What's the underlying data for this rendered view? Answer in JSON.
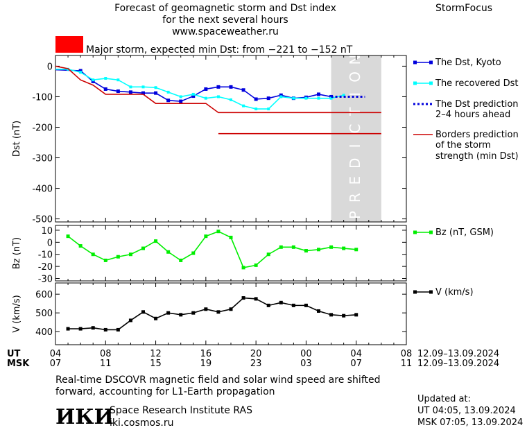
{
  "header": {
    "title_line1": "Forecast of geomagnetic storm and Dst index",
    "title_line2": "for the next several hours",
    "title_line3": "www.spaceweather.ru",
    "brand": "StormFocus"
  },
  "storm_banner": {
    "color": "#ff0000",
    "text": "Major storm, expected min Dst: from −221 to −152 nT"
  },
  "legend": {
    "dst_kyoto": "The Dst, Kyoto",
    "dst_recovered": "The recovered Dst",
    "dst_prediction_1": "The Dst prediction",
    "dst_prediction_2": "2–4 hours ahead",
    "borders_1": "Borders prediction",
    "borders_2": "of the storm",
    "borders_3": "strength (min Dst)",
    "bz": "Bz (nT, GSM)",
    "v": "V (km/s)"
  },
  "prediction_label": "PREDICTION",
  "time_axis": {
    "ut_label": "UT",
    "msk_label": "MSK",
    "ut_ticks": [
      "04",
      "08",
      "12",
      "16",
      "20",
      "00",
      "04",
      "08"
    ],
    "msk_ticks": [
      "07",
      "11",
      "15",
      "19",
      "23",
      "03",
      "07",
      "11"
    ],
    "ut_range": "12.09–13.09.2024",
    "msk_range": "12.09–13.09.2024"
  },
  "footer": {
    "note_line1": "Real-time DSCOVR magnetic field and solar wind speed are shifted",
    "note_line2": "forward, accounting for L1-Earth propagation",
    "logo": "ИКИ",
    "institute": "Space Research Institute RAS",
    "site": "iki.cosmos.ru",
    "updated_label": "Updated at:",
    "updated_ut": "UT   04:05, 13.09.2024",
    "updated_msk": "MSK 07:05, 13.09.2024"
  },
  "chart_data": [
    {
      "type": "line",
      "ylabel": "Dst (nT)",
      "ylim": [
        -510,
        35
      ],
      "yticks": [
        0,
        -100,
        -200,
        -300,
        -400,
        -500
      ],
      "xlim": [
        4,
        32
      ],
      "prediction_window": [
        26,
        30
      ],
      "series": [
        {
          "name": "The Dst, Kyoto",
          "color": "#0000dd",
          "marker": "square",
          "x": [
            3,
            6,
            7,
            8,
            9,
            10,
            11,
            12,
            13,
            14,
            15,
            16,
            17,
            18,
            19,
            20,
            21,
            22,
            23,
            24,
            25,
            26
          ],
          "y": [
            -10,
            -15,
            -50,
            -75,
            -82,
            -85,
            -88,
            -88,
            -112,
            -115,
            -98,
            -75,
            -68,
            -68,
            -78,
            -108,
            -105,
            -95,
            -105,
            -102,
            -92,
            -100
          ]
        },
        {
          "name": "The recovered Dst",
          "color": "#00ffff",
          "marker": "square",
          "x": [
            3,
            5,
            6,
            7,
            8,
            9,
            10,
            11,
            12,
            13,
            14,
            15,
            16,
            17,
            18,
            19,
            20,
            21,
            22,
            23,
            24,
            25,
            26,
            27
          ],
          "y": [
            -10,
            -10,
            -20,
            -45,
            -40,
            -45,
            -68,
            -68,
            -70,
            -85,
            -100,
            -92,
            -105,
            -100,
            -110,
            -130,
            -140,
            -140,
            -100,
            -105,
            -105,
            -105,
            -105,
            -95
          ]
        },
        {
          "name": "The Dst prediction 2–4 hours ahead",
          "color": "#0000dd",
          "style": "dotted",
          "x": [
            26,
            28.7
          ],
          "y": [
            -100,
            -100
          ]
        },
        {
          "name": "Borders prediction of the storm strength (min Dst)",
          "color": "#cc0000",
          "x": [
            3,
            4,
            5,
            6,
            7,
            8,
            9,
            10,
            11,
            12,
            13,
            14,
            15,
            16,
            17,
            18,
            19,
            20,
            21,
            22,
            23,
            24,
            25,
            26,
            27,
            28,
            29,
            30
          ],
          "y": [
            0,
            0,
            -8,
            -45,
            -62,
            -92,
            -92,
            -92,
            -92,
            -122,
            -122,
            -122,
            -122,
            -122,
            -152,
            -152,
            -152,
            -152,
            -152,
            -152,
            -152,
            -152,
            -152,
            -152,
            -152,
            -152,
            -152,
            -152
          ]
        },
        {
          "name": "Borders prediction of the storm strength (min Dst) – lower",
          "color": "#cc0000",
          "x": [
            17,
            30
          ],
          "y": [
            -221,
            -221
          ]
        }
      ]
    },
    {
      "type": "line",
      "ylabel": "Bz (nT)",
      "ylim": [
        -32,
        14
      ],
      "yticks": [
        10,
        0,
        -10,
        -20,
        -30
      ],
      "xlim": [
        4,
        32
      ],
      "series": [
        {
          "name": "Bz (nT, GSM)",
          "color": "#00ee00",
          "marker": "square",
          "x": [
            5,
            6,
            7,
            8,
            9,
            10,
            11,
            12,
            13,
            14,
            15,
            16,
            17,
            18,
            19,
            20,
            21,
            22,
            23,
            24,
            25,
            26,
            27,
            28
          ],
          "y": [
            5,
            -3,
            -10,
            -15,
            -12,
            -10,
            -5,
            1,
            -8,
            -15,
            -9,
            5,
            9,
            4,
            -21,
            -19,
            -10,
            -4,
            -4,
            -7,
            -6,
            -4,
            -5,
            -6
          ]
        }
      ]
    },
    {
      "type": "line",
      "ylabel": "V (km/s)",
      "ylim": [
        330,
        660
      ],
      "yticks": [
        600,
        500,
        400
      ],
      "xlim": [
        4,
        32
      ],
      "series": [
        {
          "name": "V (km/s)",
          "color": "#000000",
          "marker": "square",
          "x": [
            5,
            6,
            7,
            8,
            9,
            10,
            11,
            12,
            13,
            14,
            15,
            16,
            17,
            18,
            19,
            20,
            21,
            22,
            23,
            24,
            25,
            26,
            27,
            28
          ],
          "y": [
            415,
            415,
            420,
            410,
            410,
            460,
            505,
            470,
            500,
            490,
            500,
            520,
            505,
            520,
            580,
            575,
            540,
            555,
            540,
            540,
            510,
            490,
            485,
            490
          ]
        }
      ]
    }
  ]
}
